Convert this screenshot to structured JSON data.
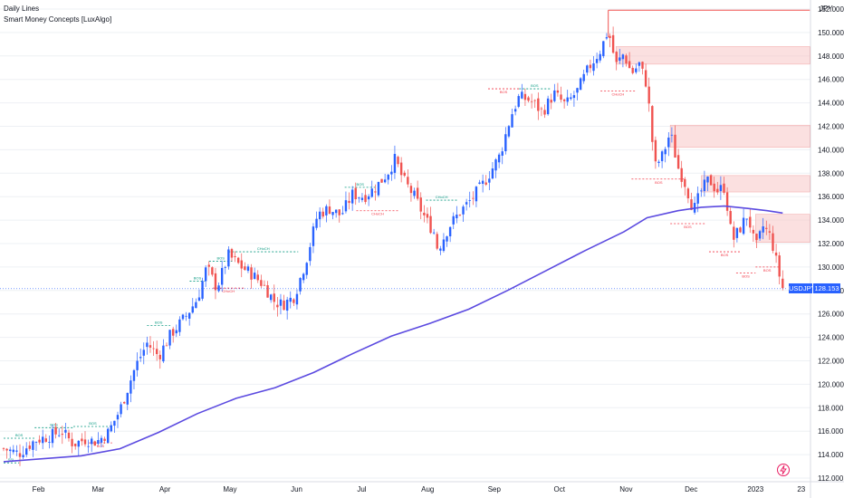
{
  "legend": {
    "line1": "Daily Lines",
    "line2": "Smart Money Concepts [LuxAlgo]"
  },
  "currency": "JPY",
  "tags": {
    "symbol": "USDJPY",
    "price": "128.153"
  },
  "icons": {
    "watermark": "lightning-bolt-icon"
  },
  "colors": {
    "up": "#2962ff",
    "down": "#f05350",
    "ema": "#5b4ae0",
    "bullish_label": "#089981",
    "bearish_label": "#f23645",
    "zone": "#f7c6c6",
    "price_line": "#2962ff"
  },
  "chart_data": {
    "type": "candlestick",
    "y_axis": {
      "min": 112,
      "max": 152,
      "ticks": [
        "112.000",
        "114.000",
        "116.000",
        "118.000",
        "120.000",
        "122.000",
        "124.000",
        "126.000",
        "128.000",
        "130.000",
        "132.000",
        "134.000",
        "136.000",
        "138.000",
        "140.000",
        "142.000",
        "144.000",
        "146.000",
        "148.000",
        "150.000",
        "152.000"
      ]
    },
    "x_axis": {
      "labels": [
        {
          "label": "Feb",
          "t": 0.045
        },
        {
          "label": "Mar",
          "t": 0.122
        },
        {
          "label": "Apr",
          "t": 0.208
        },
        {
          "label": "May",
          "t": 0.292
        },
        {
          "label": "Jun",
          "t": 0.378
        },
        {
          "label": "Jul",
          "t": 0.462
        },
        {
          "label": "Aug",
          "t": 0.547
        },
        {
          "label": "Sep",
          "t": 0.633
        },
        {
          "label": "Oct",
          "t": 0.717
        },
        {
          "label": "Nov",
          "t": 0.803
        },
        {
          "label": "Dec",
          "t": 0.887
        },
        {
          "label": "2023",
          "t": 0.97
        },
        {
          "label": "23",
          "t": 1.029
        }
      ]
    },
    "last_price": 128.153,
    "close_path": [
      [
        0,
        114.5
      ],
      [
        0.02,
        114.1
      ],
      [
        0.04,
        115.2
      ],
      [
        0.06,
        115.6
      ],
      [
        0.075,
        116.0
      ],
      [
        0.09,
        114.9
      ],
      [
        0.105,
        115.3
      ],
      [
        0.12,
        115.1
      ],
      [
        0.135,
        115.9
      ],
      [
        0.15,
        117.8
      ],
      [
        0.17,
        121.5
      ],
      [
        0.185,
        123.5
      ],
      [
        0.2,
        122.4
      ],
      [
        0.215,
        124.2
      ],
      [
        0.235,
        125.8
      ],
      [
        0.25,
        127.3
      ],
      [
        0.262,
        130.0
      ],
      [
        0.275,
        128.2
      ],
      [
        0.29,
        131.0
      ],
      [
        0.305,
        130.1
      ],
      [
        0.32,
        129.4
      ],
      [
        0.335,
        128.5
      ],
      [
        0.35,
        127.0
      ],
      [
        0.36,
        126.8
      ],
      [
        0.375,
        127.5
      ],
      [
        0.39,
        130.5
      ],
      [
        0.405,
        134.5
      ],
      [
        0.42,
        135.0
      ],
      [
        0.435,
        134.4
      ],
      [
        0.45,
        136.2
      ],
      [
        0.465,
        136.0
      ],
      [
        0.48,
        136.8
      ],
      [
        0.495,
        138.0
      ],
      [
        0.505,
        139.2
      ],
      [
        0.515,
        137.5
      ],
      [
        0.53,
        136.0
      ],
      [
        0.545,
        134.0
      ],
      [
        0.555,
        133.0
      ],
      [
        0.56,
        131.5
      ],
      [
        0.575,
        133.5
      ],
      [
        0.59,
        134.8
      ],
      [
        0.6,
        135.5
      ],
      [
        0.62,
        137.2
      ],
      [
        0.64,
        139.5
      ],
      [
        0.655,
        143.0
      ],
      [
        0.665,
        144.5
      ],
      [
        0.68,
        144.2
      ],
      [
        0.695,
        143.2
      ],
      [
        0.71,
        144.8
      ],
      [
        0.725,
        143.8
      ],
      [
        0.74,
        145.0
      ],
      [
        0.755,
        147.0
      ],
      [
        0.77,
        148.5
      ],
      [
        0.78,
        150.2
      ],
      [
        0.79,
        147.2
      ],
      [
        0.8,
        148.2
      ],
      [
        0.81,
        146.5
      ],
      [
        0.82,
        147.3
      ],
      [
        0.83,
        145.5
      ],
      [
        0.84,
        138.5
      ],
      [
        0.85,
        139.5
      ],
      [
        0.86,
        141.5
      ],
      [
        0.87,
        138.5
      ],
      [
        0.88,
        137.0
      ],
      [
        0.89,
        134.8
      ],
      [
        0.9,
        136.5
      ],
      [
        0.91,
        137.5
      ],
      [
        0.92,
        136.5
      ],
      [
        0.93,
        136.8
      ],
      [
        0.94,
        132.2
      ],
      [
        0.95,
        133.3
      ],
      [
        0.96,
        134.5
      ],
      [
        0.97,
        131.5
      ],
      [
        0.98,
        133.5
      ],
      [
        0.99,
        132.5
      ],
      [
        1.0,
        129.5
      ],
      [
        1.005,
        128.2
      ]
    ],
    "ema": [
      [
        0,
        113.4
      ],
      [
        0.1,
        113.9
      ],
      [
        0.15,
        114.5
      ],
      [
        0.2,
        115.9
      ],
      [
        0.25,
        117.5
      ],
      [
        0.3,
        118.8
      ],
      [
        0.35,
        119.7
      ],
      [
        0.4,
        121.0
      ],
      [
        0.45,
        122.6
      ],
      [
        0.5,
        124.1
      ],
      [
        0.55,
        125.2
      ],
      [
        0.6,
        126.4
      ],
      [
        0.65,
        128.0
      ],
      [
        0.7,
        129.7
      ],
      [
        0.75,
        131.4
      ],
      [
        0.8,
        133.0
      ],
      [
        0.83,
        134.2
      ],
      [
        0.87,
        134.8
      ],
      [
        0.9,
        135.1
      ],
      [
        0.93,
        135.2
      ],
      [
        0.96,
        135.0
      ],
      [
        0.985,
        134.8
      ],
      [
        1.005,
        134.6
      ]
    ],
    "zones": [
      {
        "t0": 0.79,
        "t1": 1.04,
        "y0": 147.3,
        "y1": 148.8
      },
      {
        "t0": 0.86,
        "t1": 1.04,
        "y0": 140.2,
        "y1": 142.1
      },
      {
        "t0": 0.9,
        "t1": 1.04,
        "y0": 136.4,
        "y1": 137.8
      },
      {
        "t0": 0.97,
        "t1": 1.04,
        "y0": 132.1,
        "y1": 134.5
      }
    ],
    "high_line": {
      "t0": 0.78,
      "t1": 1.04,
      "y": 151.9
    },
    "structure_labels": [
      {
        "text": "BOS",
        "kind": "bull",
        "t0": 0.0,
        "t1": 0.04,
        "y": 115.4
      },
      {
        "text": "BOS",
        "kind": "bull",
        "t0": 0.04,
        "t1": 0.09,
        "y": 116.3
      },
      {
        "text": "BOS",
        "kind": "bull",
        "t0": 0.09,
        "t1": 0.14,
        "y": 116.4
      },
      {
        "text": "BOS",
        "kind": "bear",
        "t0": 0.11,
        "t1": 0.14,
        "y": 115.0
      },
      {
        "text": "BOS",
        "kind": "bull",
        "t0": 0.185,
        "t1": 0.215,
        "y": 125.0
      },
      {
        "text": "BOS",
        "kind": "bull",
        "t0": 0.24,
        "t1": 0.26,
        "y": 128.8
      },
      {
        "text": "CHoCH",
        "kind": "bull",
        "t0": 0.29,
        "t1": 0.38,
        "y": 131.3
      },
      {
        "text": "BOS",
        "kind": "bull",
        "t0": 0.265,
        "t1": 0.295,
        "y": 130.5
      },
      {
        "text": "CHoCH",
        "kind": "bear",
        "t0": 0.27,
        "t1": 0.31,
        "y": 128.2
      },
      {
        "text": "BOS",
        "kind": "bull",
        "t0": 0.44,
        "t1": 0.48,
        "y": 136.8
      },
      {
        "text": "CHoCH",
        "kind": "bear",
        "t0": 0.455,
        "t1": 0.51,
        "y": 134.8
      },
      {
        "text": "CHoCH",
        "kind": "bull",
        "t0": 0.545,
        "t1": 0.585,
        "y": 135.7
      },
      {
        "text": "BOS",
        "kind": "bear",
        "t0": 0.625,
        "t1": 0.665,
        "y": 145.2
      },
      {
        "text": "BOS",
        "kind": "bull",
        "t0": 0.665,
        "t1": 0.705,
        "y": 145.2
      },
      {
        "text": "CHoCH",
        "kind": "bear",
        "t0": 0.77,
        "t1": 0.815,
        "y": 145.0
      },
      {
        "text": "BOS",
        "kind": "bear",
        "t0": 0.81,
        "t1": 0.88,
        "y": 137.5
      },
      {
        "text": "BOS",
        "kind": "bear",
        "t0": 0.86,
        "t1": 0.905,
        "y": 133.7
      },
      {
        "text": "BOS",
        "kind": "bear",
        "t0": 0.91,
        "t1": 0.95,
        "y": 131.3
      },
      {
        "text": "BOS",
        "kind": "bear",
        "t0": 0.945,
        "t1": 0.97,
        "y": 129.5
      },
      {
        "text": "BOS",
        "kind": "bear",
        "t0": 0.97,
        "t1": 1.0,
        "y": 130.0
      },
      {
        "text": "SSL",
        "kind": "bull",
        "t0": 0.0,
        "t1": 0.02,
        "y": 113.3
      }
    ]
  }
}
